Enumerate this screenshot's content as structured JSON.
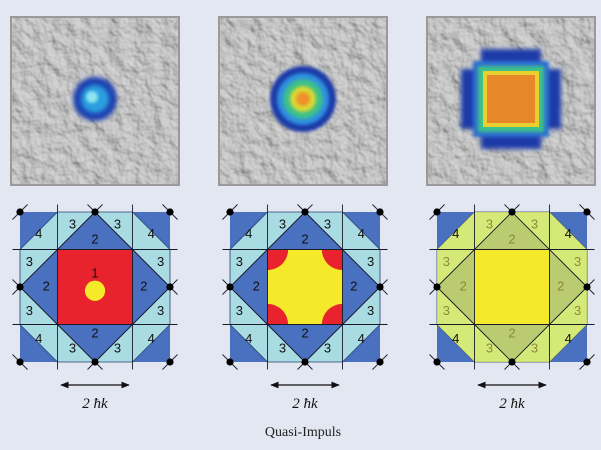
{
  "panels": [
    {
      "zone_labels": [
        "4",
        "3",
        "2",
        "3",
        "4",
        "3",
        "3",
        "2",
        "2",
        "3",
        "3",
        "4",
        "3",
        "2",
        "3",
        "4",
        "1"
      ],
      "scale_label": "2 ħk"
    },
    {
      "zone_labels": [
        "4",
        "3",
        "2",
        "3",
        "4",
        "3",
        "3",
        "2",
        "2",
        "3",
        "3",
        "4",
        "3",
        "2",
        "3",
        "4"
      ],
      "scale_label": "2 ħk"
    },
    {
      "zone_labels": [
        "4",
        "3",
        "2",
        "3",
        "4",
        "3",
        "3",
        "2",
        "2",
        "3",
        "3",
        "4",
        "3",
        "2",
        "3",
        "4"
      ],
      "scale_label": "2 ħk"
    }
  ],
  "caption": "Quasi-Impuls"
}
